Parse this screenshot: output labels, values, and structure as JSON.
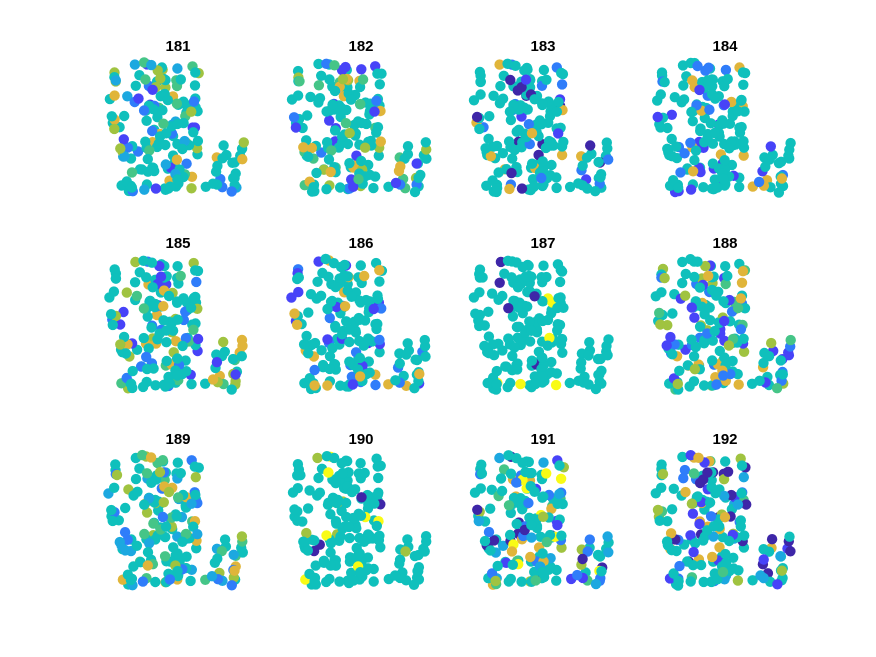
{
  "chart_data": {
    "type": "scatter",
    "panels": [
      {
        "title": "181"
      },
      {
        "title": "182"
      },
      {
        "title": "183"
      },
      {
        "title": "184"
      },
      {
        "title": "185"
      },
      {
        "title": "186"
      },
      {
        "title": "187"
      },
      {
        "title": "188"
      },
      {
        "title": "189"
      },
      {
        "title": "190"
      },
      {
        "title": "191"
      },
      {
        "title": "192"
      }
    ],
    "grid": false,
    "axes_visible": false,
    "colormap": [
      "#3e26a8",
      "#4743f8",
      "#2f7dfa",
      "#1ca8e0",
      "#17bfb4",
      "#0fc0bc",
      "#45c587",
      "#a0c340",
      "#e0b53a",
      "#f9fb15"
    ],
    "base_color": "#0fc0bc"
  }
}
